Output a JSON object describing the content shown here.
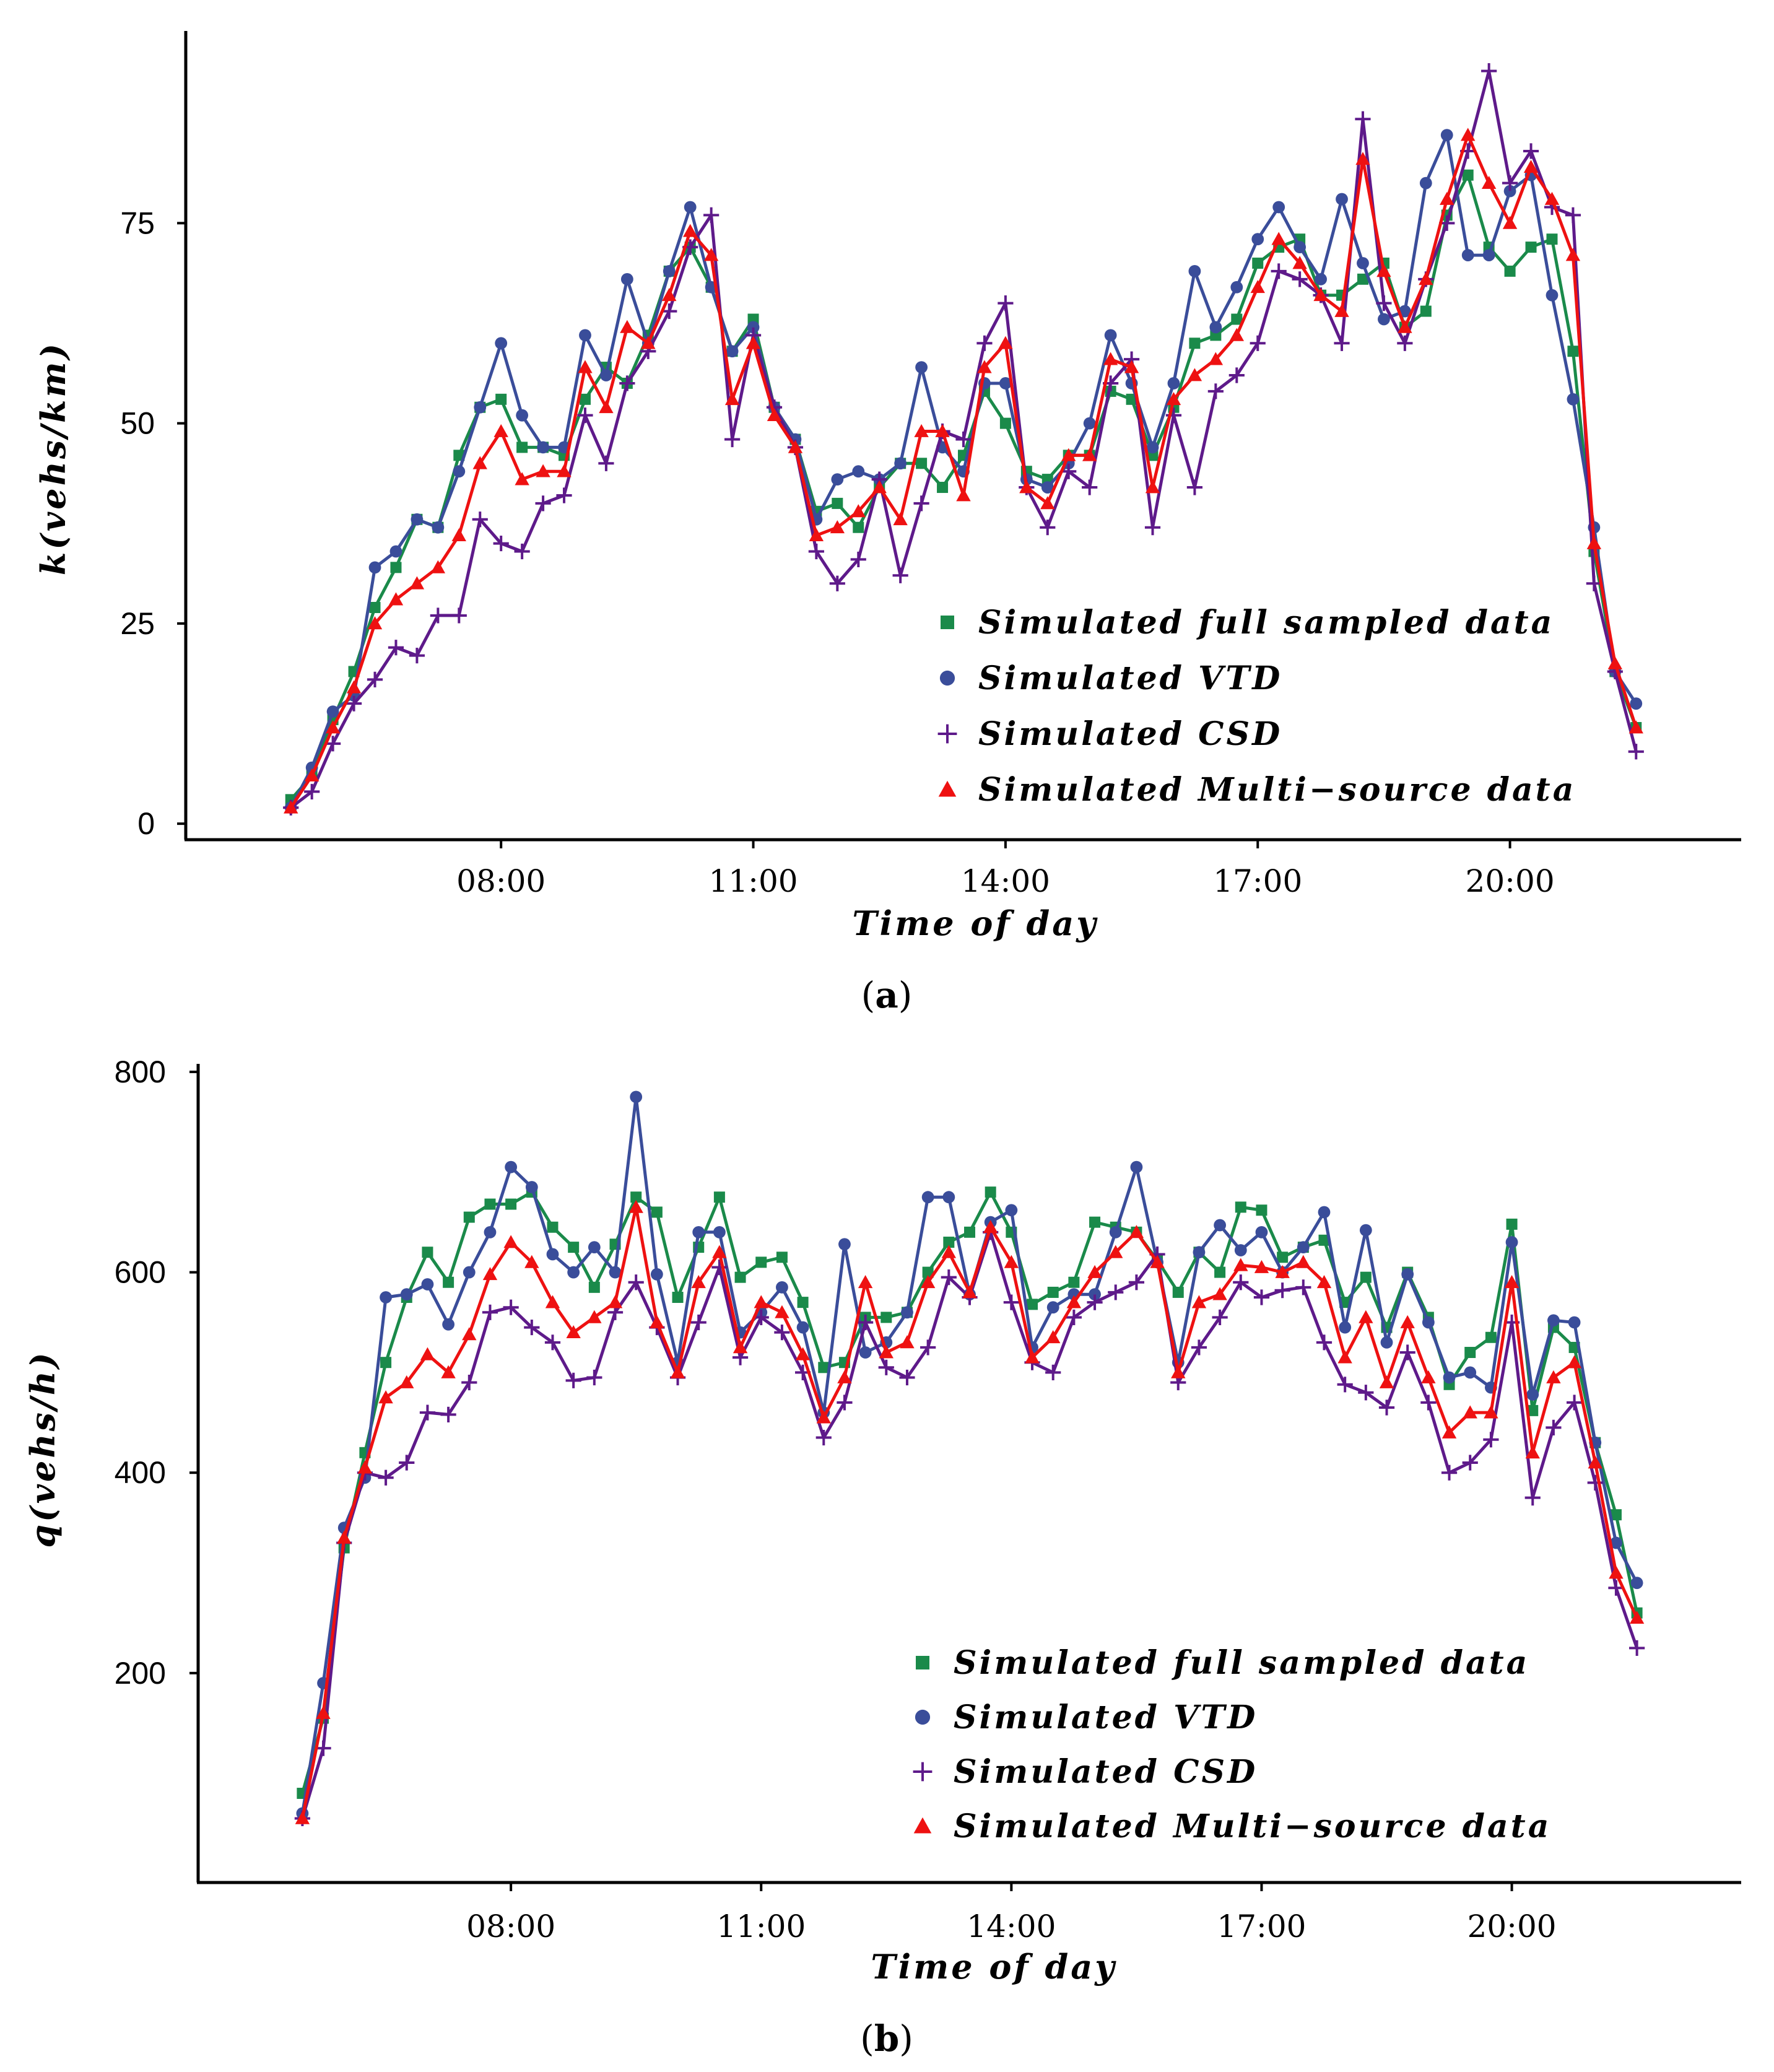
{
  "colors": {
    "full": "#1a8a4a",
    "vtd": "#3a4d9a",
    "csd": "#5e1a8a",
    "multi": "#ee1111"
  },
  "chart_data": [
    {
      "id": "a",
      "type": "line",
      "panel_label": "a",
      "xlabel": "Time of day",
      "ylabel": "k(vehs/km)",
      "x_start_hours": 5.5,
      "x_step_hours": 0.25,
      "xlim_hours": [
        4.25,
        22.75
      ],
      "x_ticks": [
        {
          "value": 8,
          "label": "08:00"
        },
        {
          "value": 11,
          "label": "11:00"
        },
        {
          "value": 14,
          "label": "14:00"
        },
        {
          "value": 17,
          "label": "17:00"
        },
        {
          "value": 20,
          "label": "20:00"
        }
      ],
      "ylim": [
        -2,
        99
      ],
      "y_ticks": [
        {
          "value": 0,
          "label": "0"
        },
        {
          "value": 25,
          "label": "25"
        },
        {
          "value": 50,
          "label": "50"
        },
        {
          "value": 75,
          "label": "75"
        }
      ],
      "legend": [
        "Simulated full sampled data",
        "Simulated VTD",
        "Simulated CSD",
        "Simulated Multi−source data"
      ],
      "series": [
        {
          "name": "Simulated full sampled data",
          "key": "full",
          "marker": "square",
          "values": [
            3,
            6,
            13,
            19,
            27,
            32,
            38,
            37,
            46,
            52,
            53,
            47,
            47,
            46,
            53,
            57,
            55,
            61,
            69,
            72,
            67,
            59,
            63,
            52,
            48,
            39,
            40,
            37,
            42,
            45,
            45,
            42,
            46,
            54,
            50,
            44,
            43,
            46,
            46,
            54,
            53,
            46,
            52,
            60,
            61,
            63,
            70,
            72,
            73,
            66,
            66,
            68,
            70,
            62,
            64,
            76,
            81,
            72,
            69,
            72,
            73,
            59,
            34,
            19,
            12
          ]
        },
        {
          "name": "Simulated VTD",
          "key": "vtd",
          "marker": "circle",
          "values": [
            2,
            7,
            14,
            16,
            32,
            34,
            38,
            37,
            44,
            52,
            60,
            51,
            47,
            47,
            61,
            56,
            68,
            60,
            69,
            77,
            67,
            59,
            62,
            52,
            48,
            38,
            43,
            44,
            43,
            45,
            57,
            47,
            44,
            55,
            55,
            43,
            42,
            45,
            50,
            61,
            55,
            47,
            55,
            69,
            62,
            67,
            73,
            77,
            72,
            68,
            78,
            70,
            63,
            64,
            80,
            86,
            71,
            71,
            79,
            81,
            66,
            53,
            37,
            19,
            15
          ]
        },
        {
          "name": "Simulated CSD",
          "key": "csd",
          "marker": "plus",
          "values": [
            2,
            4,
            10,
            15,
            18,
            22,
            21,
            26,
            26,
            38,
            35,
            34,
            40,
            41,
            51,
            45,
            55,
            59,
            64,
            72,
            76,
            48,
            61,
            52,
            47,
            34,
            30,
            33,
            43,
            31,
            40,
            49,
            48,
            60,
            65,
            42,
            37,
            44,
            42,
            55,
            58,
            37,
            51,
            42,
            54,
            56,
            60,
            69,
            68,
            66,
            60,
            88,
            65,
            60,
            68,
            75,
            84,
            94,
            80,
            84,
            77,
            76,
            30,
            19,
            9
          ]
        },
        {
          "name": "Simulated Multi−source data",
          "key": "multi",
          "marker": "triangle",
          "values": [
            2,
            6,
            12,
            17,
            25,
            28,
            30,
            32,
            36,
            45,
            49,
            43,
            44,
            44,
            57,
            52,
            62,
            60,
            66,
            74,
            71,
            53,
            60,
            51,
            47,
            36,
            37,
            39,
            42,
            38,
            49,
            49,
            41,
            57,
            60,
            42,
            40,
            46,
            46,
            58,
            57,
            42,
            53,
            56,
            58,
            61,
            67,
            73,
            70,
            66,
            64,
            83,
            69,
            62,
            68,
            78,
            86,
            80,
            75,
            82,
            78,
            71,
            35,
            20,
            12
          ]
        }
      ]
    },
    {
      "id": "b",
      "type": "line",
      "panel_label": "b",
      "xlabel": "Time of day",
      "ylabel": "q(vehs/h)",
      "x_start_hours": 5.5,
      "x_step_hours": 0.25,
      "xlim_hours": [
        4.25,
        22.75
      ],
      "x_ticks": [
        {
          "value": 8,
          "label": "08:00"
        },
        {
          "value": 11,
          "label": "11:00"
        },
        {
          "value": 14,
          "label": "14:00"
        },
        {
          "value": 17,
          "label": "17:00"
        },
        {
          "value": 20,
          "label": "20:00"
        }
      ],
      "ylim": [
        -9,
        808
      ],
      "y_ticks": [
        {
          "value": 200,
          "label": "200"
        },
        {
          "value": 400,
          "label": "400"
        },
        {
          "value": 600,
          "label": "600"
        },
        {
          "value": 800,
          "label": "800"
        }
      ],
      "legend": [
        "Simulated full sampled data",
        "Simulated VTD",
        "Simulated CSD",
        "Simulated Multi−source data"
      ],
      "series": [
        {
          "name": "Simulated full sampled data",
          "key": "full",
          "marker": "square",
          "values": [
            80,
            155,
            325,
            420,
            510,
            575,
            620,
            590,
            655,
            668,
            668,
            680,
            645,
            625,
            585,
            628,
            675,
            660,
            575,
            625,
            675,
            595,
            610,
            615,
            570,
            505,
            510,
            555,
            555,
            560,
            600,
            630,
            640,
            680,
            640,
            568,
            580,
            590,
            650,
            645,
            640,
            612,
            580,
            620,
            600,
            665,
            662,
            615,
            625,
            632,
            570,
            595,
            545,
            600,
            555,
            488,
            520,
            535,
            648,
            462,
            545,
            525,
            430,
            358,
            260
          ]
        },
        {
          "name": "Simulated VTD",
          "key": "vtd",
          "marker": "circle",
          "values": [
            60,
            190,
            345,
            395,
            575,
            578,
            588,
            548,
            600,
            640,
            705,
            685,
            618,
            600,
            625,
            600,
            775,
            598,
            510,
            640,
            640,
            540,
            560,
            585,
            545,
            460,
            628,
            520,
            530,
            560,
            675,
            675,
            578,
            650,
            662,
            525,
            565,
            578,
            578,
            640,
            705,
            610,
            510,
            620,
            647,
            622,
            640,
            600,
            625,
            660,
            545,
            642,
            530,
            598,
            550,
            495,
            500,
            485,
            630,
            478,
            552,
            550,
            430,
            330,
            290
          ]
        },
        {
          "name": "Simulated CSD",
          "key": "csd",
          "marker": "plus",
          "values": [
            55,
            125,
            330,
            400,
            395,
            410,
            460,
            458,
            490,
            560,
            565,
            545,
            530,
            492,
            495,
            560,
            590,
            545,
            495,
            550,
            605,
            515,
            555,
            540,
            500,
            435,
            470,
            550,
            505,
            495,
            525,
            595,
            575,
            640,
            570,
            510,
            500,
            555,
            570,
            580,
            590,
            618,
            490,
            525,
            555,
            590,
            575,
            582,
            585,
            530,
            488,
            480,
            465,
            520,
            470,
            400,
            410,
            433,
            550,
            375,
            445,
            470,
            390,
            285,
            225
          ]
        },
        {
          "name": "Simulated Multi−source data",
          "key": "multi",
          "marker": "triangle",
          "values": [
            55,
            160,
            335,
            405,
            475,
            490,
            518,
            500,
            538,
            598,
            630,
            610,
            570,
            540,
            555,
            570,
            665,
            550,
            500,
            590,
            620,
            525,
            570,
            560,
            518,
            455,
            495,
            590,
            520,
            530,
            590,
            620,
            580,
            645,
            610,
            515,
            535,
            570,
            600,
            620,
            640,
            610,
            500,
            570,
            578,
            607,
            605,
            600,
            610,
            590,
            515,
            555,
            490,
            550,
            495,
            440,
            460,
            460,
            590,
            420,
            495,
            510,
            410,
            300,
            255
          ]
        }
      ]
    }
  ]
}
